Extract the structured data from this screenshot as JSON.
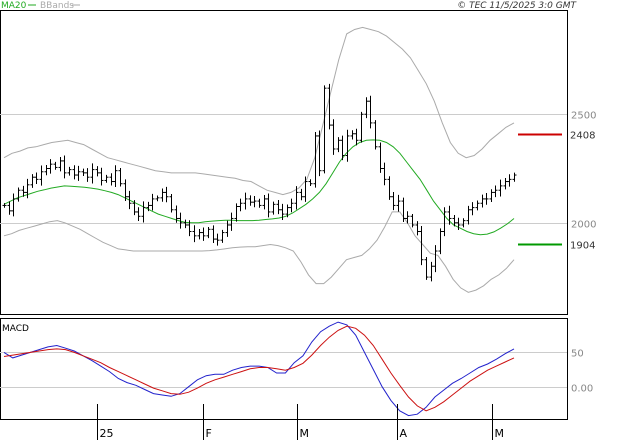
{
  "header": {
    "ma_label": "MA20",
    "bbands_label": "BBands",
    "copyright": "© TEC 11/5/2025 3:0 GMT"
  },
  "colors": {
    "ma": "#22aa22",
    "bbands": "#aaaaaa",
    "macd": "#2222cc",
    "signal": "#cc1111",
    "resistance": "#cc0000",
    "support": "#009900",
    "text": "#333333"
  },
  "macd_panel": {
    "title": "MACD"
  },
  "chart_data": [
    {
      "type": "ohlc",
      "title": "",
      "ylim": [
        1580,
        2980
      ],
      "y_ticks": [
        {
          "value": 2500,
          "label": "2500"
        },
        {
          "value": 2000,
          "label": "2000"
        }
      ],
      "x_ticks": [
        "25",
        "F",
        "M",
        "A",
        "M"
      ],
      "levels": [
        {
          "name": "resistance",
          "value": 2408,
          "label": "2408"
        },
        {
          "name": "support",
          "value": 1904,
          "label": "1904"
        }
      ],
      "closes": [
        2080,
        2055,
        2110,
        2150,
        2140,
        2175,
        2210,
        2200,
        2235,
        2250,
        2270,
        2255,
        2285,
        2230,
        2245,
        2220,
        2235,
        2230,
        2210,
        2245,
        2230,
        2195,
        2210,
        2190,
        2240,
        2180,
        2120,
        2090,
        2050,
        2030,
        2070,
        2080,
        2110,
        2115,
        2140,
        2120,
        2060,
        2020,
        2000,
        1990,
        1960,
        1940,
        1955,
        1940,
        1970,
        1925,
        1920,
        1955,
        1990,
        2020,
        2075,
        2090,
        2110,
        2095,
        2100,
        2080,
        2110,
        2050,
        2085,
        2060,
        2040,
        2070,
        2090,
        2140,
        2120,
        2190,
        2180,
        2400,
        2240,
        2620,
        2450,
        2340,
        2380,
        2310,
        2400,
        2410,
        2380,
        2500,
        2560,
        2460,
        2350,
        2250,
        2200,
        2120,
        2080,
        2100,
        2020,
        2030,
        1990,
        1960,
        1830,
        1750,
        1800,
        1870,
        1960,
        2050,
        2020,
        2000,
        1990,
        2010,
        2060,
        2070,
        2090,
        2110,
        2110,
        2140,
        2150,
        2170,
        2190,
        2200,
        2220
      ],
      "ma20": [
        2085,
        2100,
        2115,
        2125,
        2135,
        2145,
        2152,
        2160,
        2165,
        2170,
        2168,
        2166,
        2164,
        2160,
        2155,
        2148,
        2140,
        2130,
        2115,
        2100,
        2085,
        2070,
        2055,
        2040,
        2030,
        2020,
        2010,
        2002,
        2000,
        2000,
        2005,
        2008,
        2010,
        2012,
        2012,
        2010,
        2010,
        2010,
        2012,
        2015,
        2018,
        2022,
        2030,
        2045,
        2065,
        2085,
        2110,
        2140,
        2180,
        2230,
        2280,
        2320,
        2350,
        2370,
        2380,
        2382,
        2380,
        2370,
        2350,
        2320,
        2280,
        2240,
        2200,
        2150,
        2100,
        2060,
        2020,
        1990,
        1975,
        1960,
        1950,
        1945,
        1948,
        1958,
        1975,
        1995,
        2020
      ],
      "bb_upper": [
        2300,
        2320,
        2330,
        2345,
        2350,
        2360,
        2370,
        2375,
        2380,
        2370,
        2360,
        2340,
        2320,
        2300,
        2290,
        2280,
        2270,
        2260,
        2250,
        2240,
        2235,
        2230,
        2230,
        2230,
        2230,
        2225,
        2220,
        2215,
        2210,
        2205,
        2195,
        2190,
        2170,
        2150,
        2140,
        2130,
        2140,
        2160,
        2200,
        2300,
        2450,
        2600,
        2750,
        2870,
        2890,
        2900,
        2890,
        2880,
        2860,
        2830,
        2800,
        2760,
        2700,
        2640,
        2560,
        2460,
        2370,
        2320,
        2300,
        2310,
        2340,
        2380,
        2410,
        2440,
        2460
      ],
      "bb_lower": [
        1940,
        1950,
        1965,
        1975,
        1985,
        1995,
        2005,
        2010,
        2000,
        1985,
        1970,
        1950,
        1930,
        1910,
        1895,
        1880,
        1875,
        1870,
        1870,
        1870,
        1870,
        1870,
        1870,
        1870,
        1870,
        1870,
        1870,
        1872,
        1875,
        1880,
        1885,
        1888,
        1890,
        1890,
        1895,
        1900,
        1895,
        1885,
        1870,
        1820,
        1760,
        1720,
        1720,
        1750,
        1790,
        1830,
        1840,
        1850,
        1880,
        1920,
        1980,
        2050,
        2050,
        2000,
        1940,
        1900,
        1860,
        1850,
        1800,
        1740,
        1700,
        1680,
        1690,
        1710,
        1740,
        1760,
        1790,
        1830
      ]
    },
    {
      "type": "line",
      "title": "MACD",
      "ylim": [
        -47,
        100
      ],
      "y_ticks": [
        {
          "value": 50,
          "label": "50"
        },
        {
          "value": 0,
          "label": "0.00"
        }
      ],
      "series": [
        {
          "name": "macd",
          "values": [
            50,
            42,
            46,
            50,
            54,
            58,
            60,
            56,
            52,
            45,
            38,
            30,
            22,
            12,
            6,
            2,
            -4,
            -10,
            -12,
            -14,
            -10,
            0,
            10,
            16,
            18,
            18,
            24,
            28,
            30,
            30,
            28,
            20,
            20,
            35,
            45,
            65,
            80,
            88,
            94,
            90,
            75,
            50,
            25,
            0,
            -20,
            -35,
            -42,
            -40,
            -30,
            -15,
            -5,
            5,
            12,
            20,
            28,
            33,
            40,
            48,
            55
          ]
        },
        {
          "name": "signal",
          "values": [
            44,
            46,
            48,
            50,
            52,
            54,
            55,
            54,
            50,
            45,
            40,
            35,
            28,
            22,
            16,
            10,
            4,
            -2,
            -6,
            -10,
            -11,
            -8,
            -2,
            5,
            10,
            14,
            18,
            22,
            26,
            28,
            28,
            26,
            24,
            28,
            34,
            46,
            60,
            72,
            82,
            88,
            85,
            75,
            60,
            40,
            20,
            2,
            -15,
            -28,
            -35,
            -30,
            -22,
            -12,
            -2,
            8,
            16,
            24,
            30,
            36,
            42
          ]
        }
      ]
    }
  ]
}
